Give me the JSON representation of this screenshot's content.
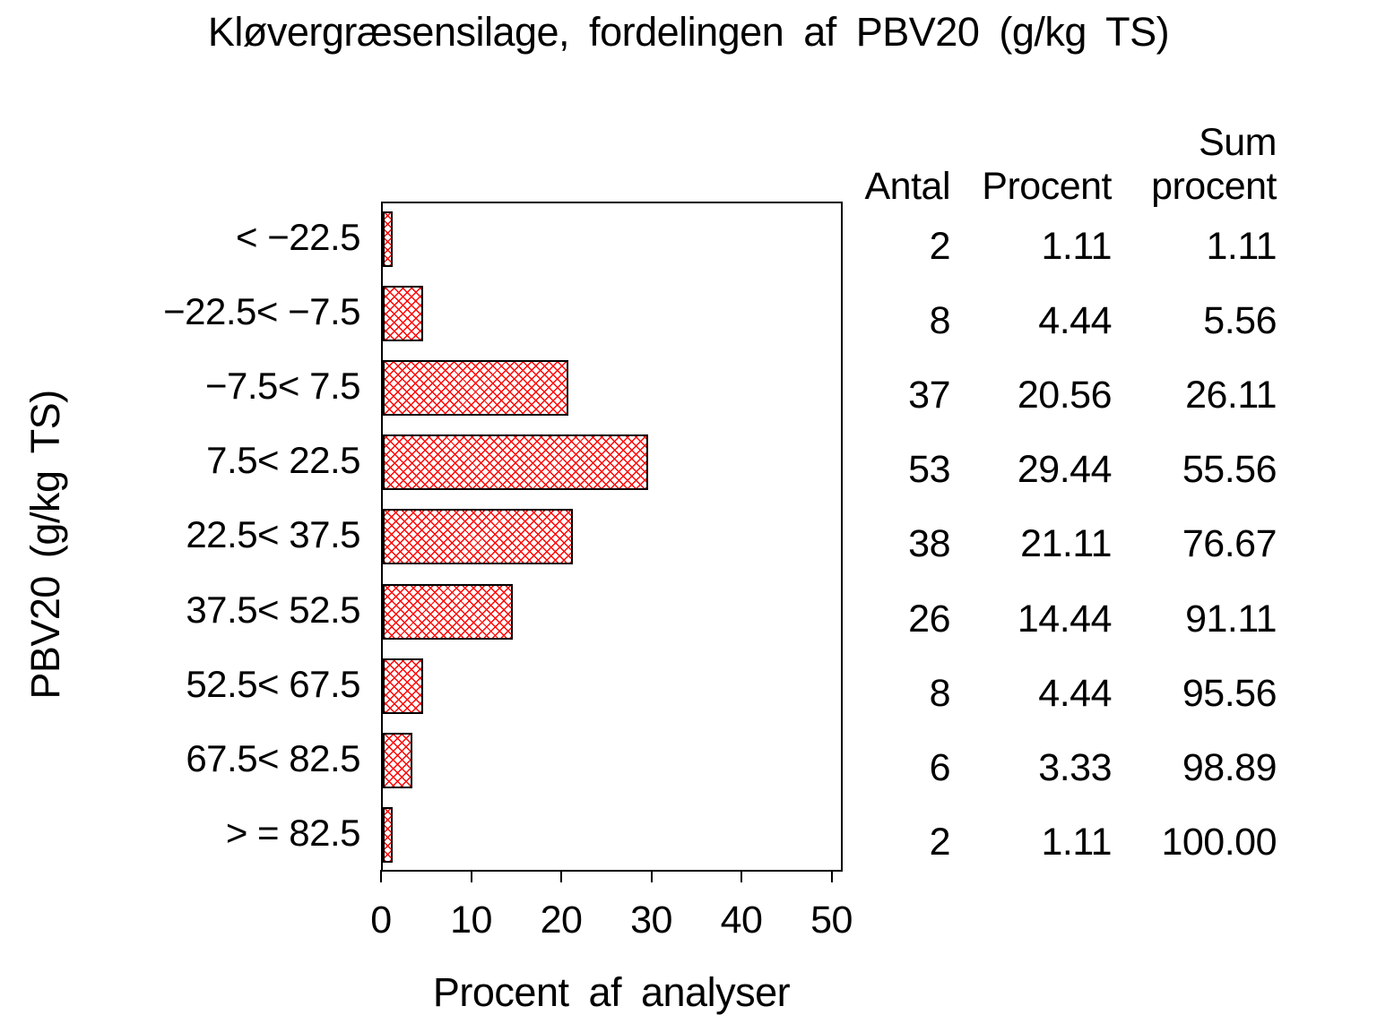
{
  "title": "Kløvergræsensilage, fordelingen af PBV20 (g/kg TS)",
  "table": {
    "headers": [
      "Antal",
      "Procent",
      "Sum procent"
    ],
    "antal_label": "Antal",
    "procent_label": "Procent",
    "sum_line1": "Sum",
    "sum_line2": "procent"
  },
  "chart_data": {
    "type": "bar",
    "orientation": "horizontal",
    "title": "Kløvergræsensilage, fordelingen af PBV20 (g/kg TS)",
    "xlabel": "Procent af analyser",
    "ylabel": "PBV20 (g/kg TS)",
    "categories": [
      "< −22.5",
      "−22.5< −7.5",
      "−7.5< 7.5",
      "7.5< 22.5",
      "22.5< 37.5",
      "37.5< 52.5",
      "52.5< 67.5",
      "67.5< 82.5",
      "> = 82.5"
    ],
    "series": [
      {
        "name": "Antal",
        "values": [
          2,
          8,
          37,
          53,
          38,
          26,
          8,
          6,
          2
        ]
      },
      {
        "name": "Procent",
        "values": [
          1.11,
          4.44,
          20.56,
          29.44,
          21.11,
          14.44,
          4.44,
          3.33,
          1.11
        ]
      },
      {
        "name": "Sum procent",
        "values": [
          1.11,
          5.56,
          26.11,
          55.56,
          76.67,
          91.11,
          95.56,
          98.89,
          100.0
        ]
      }
    ],
    "antal_display": [
      "2",
      "8",
      "37",
      "53",
      "38",
      "26",
      "8",
      "6",
      "2"
    ],
    "procent_display": [
      "1.11",
      "4.44",
      "20.56",
      "29.44",
      "21.11",
      "14.44",
      "4.44",
      "3.33",
      "1.11"
    ],
    "sum_display": [
      "1.11",
      "5.56",
      "26.11",
      "55.56",
      "76.67",
      "91.11",
      "95.56",
      "98.89",
      "100.00"
    ],
    "x_ticks": [
      "0",
      "10",
      "20",
      "30",
      "40",
      "50"
    ],
    "xlim": [
      0,
      51
    ],
    "grid": false,
    "legend_position": "none",
    "bar_pattern": "diagonal-crosshatch",
    "bar_color": "#ff0000",
    "bar_border_color": "#000000",
    "text_color": "#000000",
    "background_color": "#ffffff"
  }
}
